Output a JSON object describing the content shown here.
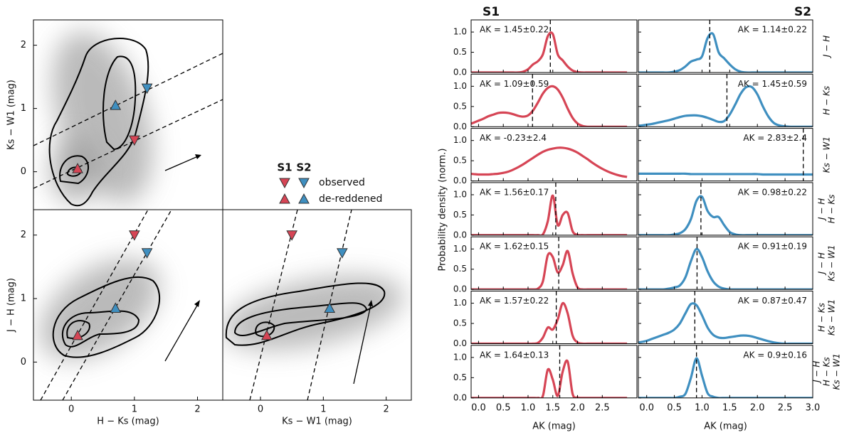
{
  "chart_data": [
    {
      "type": "scatter",
      "ylabel": "Ks − W1 (mag)",
      "xlim": [
        -0.6,
        2.4
      ],
      "ylim": [
        -0.6,
        2.4
      ],
      "yticks": [
        0,
        1,
        2
      ],
      "legend_entries": [
        "observed",
        "de-reddened"
      ],
      "series": [
        {
          "name": "S1",
          "color": "#d64555",
          "x": [
            1.0,
            0.1
          ],
          "y": [
            0.5,
            0.05
          ]
        },
        {
          "name": "S2",
          "color": "#3f8fc0",
          "x": [
            1.2,
            0.7
          ],
          "y": [
            1.32,
            1.05
          ]
        }
      ]
    },
    {
      "type": "scatter",
      "xlabel": "H − Ks (mag)",
      "ylabel": "J − H (mag)",
      "xlim": [
        -0.6,
        2.4
      ],
      "ylim": [
        -0.6,
        2.4
      ],
      "xticks": [
        0,
        1,
        2
      ],
      "yticks": [
        0,
        1,
        2
      ],
      "series": [
        {
          "color": "#d64555",
          "x": [
            1.0,
            0.1
          ],
          "y": [
            2.0,
            0.42
          ]
        },
        {
          "color": "#3f8fc0",
          "x": [
            1.2,
            0.7
          ],
          "y": [
            1.72,
            0.85
          ]
        }
      ]
    },
    {
      "type": "scatter",
      "xlabel": "Ks − W1 (mag)",
      "xlim": [
        -0.6,
        2.4
      ],
      "ylim": [
        -0.6,
        2.4
      ],
      "xticks": [
        0,
        1,
        2
      ],
      "series": [
        {
          "color": "#d64555",
          "x": [
            0.5,
            0.1
          ],
          "y": [
            2.0,
            0.42
          ]
        },
        {
          "color": "#3f8fc0",
          "x": [
            1.3,
            1.1
          ],
          "y": [
            1.72,
            0.85
          ]
        }
      ]
    },
    {
      "type": "line",
      "ylabel": "Probability density (norm.)",
      "xlabel": "AK (mag)",
      "ylim": [
        0,
        1.3
      ],
      "yticks": [
        {
          "value": 0,
          "label": "0.0"
        },
        {
          "value": 0.5,
          "label": "0.5"
        },
        {
          "value": 1,
          "label": "1.0"
        }
      ],
      "rows": [
        [
          "J − H"
        ],
        [
          "H − Ks"
        ],
        [
          "Ks − W1"
        ],
        [
          "J − H",
          "H − Ks"
        ],
        [
          "J − H",
          "Ks − W1"
        ],
        [
          "H − Ks",
          "Ks − W1"
        ],
        [
          "J − H",
          "H − Ks",
          "Ks − W1"
        ]
      ],
      "x": [
        -0.2,
        -0.1,
        0.0,
        0.1,
        0.2,
        0.3,
        0.4,
        0.5,
        0.6,
        0.7,
        0.8,
        0.9,
        1.0,
        1.1,
        1.2,
        1.3,
        1.4,
        1.5,
        1.6,
        1.7,
        1.8,
        1.9,
        2.0,
        2.1,
        2.2,
        2.3,
        2.4,
        2.5,
        2.6,
        2.7,
        2.8,
        2.9,
        3.0
      ],
      "series": [
        {
          "name": "S1",
          "color": "#d64555",
          "xlim": [
            -0.15,
            3.2
          ],
          "xticks": [
            {
              "value": 0,
              "label": "0.0"
            },
            {
              "value": 0.5,
              "label": "0.5"
            },
            {
              "value": 1,
              "label": "1.0"
            },
            {
              "value": 1.5,
              "label": "1.5"
            },
            {
              "value": 2,
              "label": "2.0"
            },
            {
              "value": 2.5,
              "label": "2.5"
            }
          ],
          "ak": [
            1.45,
            1.09,
            -0.23,
            1.56,
            1.62,
            1.57,
            1.64
          ],
          "ak_labels": [
            "AK = 1.45±0.22",
            "AK = 1.09±0.59",
            "AK = -0.23±2.4",
            "AK = 1.56±0.17",
            "AK = 1.62±0.15",
            "AK = 1.57±0.22",
            "AK = 1.64±0.13"
          ],
          "values": [
            [
              0,
              0,
              0,
              0,
              0,
              0,
              0,
              0,
              0,
              0,
              0,
              0.02,
              0.08,
              0.2,
              0.28,
              0.45,
              0.9,
              0.95,
              0.45,
              0.3,
              0.15,
              0.05,
              0.01,
              0,
              0,
              0,
              0,
              0,
              0,
              0,
              0,
              0,
              0
            ],
            [
              0.05,
              0.1,
              0.15,
              0.2,
              0.26,
              0.3,
              0.34,
              0.35,
              0.34,
              0.31,
              0.27,
              0.25,
              0.28,
              0.4,
              0.6,
              0.82,
              0.96,
              1.0,
              0.92,
              0.72,
              0.45,
              0.22,
              0.08,
              0.02,
              0,
              0,
              0,
              0,
              0,
              0,
              0,
              0,
              0
            ],
            [
              0.18,
              0.17,
              0.16,
              0.16,
              0.16,
              0.17,
              0.18,
              0.2,
              0.23,
              0.28,
              0.34,
              0.41,
              0.49,
              0.57,
              0.65,
              0.72,
              0.77,
              0.8,
              0.82,
              0.82,
              0.8,
              0.76,
              0.7,
              0.62,
              0.54,
              0.45,
              0.37,
              0.3,
              0.24,
              0.19,
              0.15,
              0.12,
              0.1
            ],
            [
              0,
              0,
              0,
              0,
              0,
              0,
              0,
              0,
              0,
              0,
              0,
              0,
              0,
              0,
              0,
              0.02,
              0.35,
              0.98,
              0.25,
              0.5,
              0.55,
              0.1,
              0.01,
              0,
              0,
              0,
              0,
              0,
              0,
              0,
              0,
              0,
              0
            ],
            [
              0,
              0,
              0,
              0,
              0,
              0,
              0,
              0,
              0,
              0,
              0,
              0,
              0,
              0,
              0.02,
              0.2,
              0.85,
              0.8,
              0.42,
              0.6,
              0.95,
              0.4,
              0.05,
              0,
              0,
              0,
              0,
              0,
              0,
              0,
              0,
              0,
              0
            ],
            [
              0,
              0,
              0,
              0,
              0,
              0,
              0,
              0,
              0,
              0,
              0,
              0,
              0,
              0,
              0.02,
              0.15,
              0.4,
              0.35,
              0.6,
              1.0,
              0.75,
              0.2,
              0.03,
              0,
              0,
              0,
              0,
              0,
              0,
              0,
              0,
              0,
              0
            ],
            [
              0,
              0,
              0,
              0,
              0,
              0,
              0,
              0,
              0,
              0,
              0,
              0,
              0,
              0,
              0,
              0.05,
              0.7,
              0.45,
              0.05,
              0.65,
              0.9,
              0.1,
              0.01,
              0,
              0,
              0,
              0,
              0,
              0,
              0,
              0,
              0,
              0
            ]
          ]
        },
        {
          "name": "S2",
          "color": "#3f8fc0",
          "xlim": [
            -0.15,
            3.0
          ],
          "xticks": [
            {
              "value": 0,
              "label": "0.0"
            },
            {
              "value": 0.5,
              "label": "0.5"
            },
            {
              "value": 1,
              "label": "1.0"
            },
            {
              "value": 1.5,
              "label": "1.5"
            },
            {
              "value": 2,
              "label": "2.0"
            },
            {
              "value": 2.5,
              "label": "2.5"
            },
            {
              "value": 3,
              "label": "3.0"
            }
          ],
          "ak": [
            1.14,
            1.45,
            2.83,
            0.98,
            0.91,
            0.87,
            0.9
          ],
          "ak_labels": [
            "AK = 1.14±0.22",
            "AK = 1.45±0.59",
            "AK = 2.83±2.4",
            "AK = 0.98±0.22",
            "AK = 0.91±0.19",
            "AK = 0.87±0.47",
            "AK = 0.9±0.16"
          ],
          "values": [
            [
              0,
              0,
              0,
              0,
              0,
              0,
              0,
              0.02,
              0.06,
              0.15,
              0.27,
              0.32,
              0.4,
              0.85,
              0.95,
              0.5,
              0.35,
              0.2,
              0.08,
              0.02,
              0,
              0,
              0,
              0,
              0,
              0,
              0,
              0,
              0,
              0,
              0,
              0,
              0
            ],
            [
              0.02,
              0.03,
              0.05,
              0.07,
              0.1,
              0.13,
              0.16,
              0.2,
              0.24,
              0.27,
              0.28,
              0.28,
              0.26,
              0.22,
              0.17,
              0.12,
              0.14,
              0.3,
              0.55,
              0.82,
              0.98,
              0.98,
              0.8,
              0.5,
              0.25,
              0.09,
              0.03,
              0.01,
              0,
              0,
              0,
              0,
              0
            ],
            [
              0.18,
              0.18,
              0.18,
              0.18,
              0.18,
              0.18,
              0.18,
              0.18,
              0.18,
              0.18,
              0.17,
              0.17,
              0.17,
              0.17,
              0.17,
              0.17,
              0.17,
              0.17,
              0.17,
              0.17,
              0.17,
              0.17,
              0.17,
              0.16,
              0.16,
              0.16,
              0.16,
              0.16,
              0.16,
              0.16,
              0.16,
              0.16,
              0.16
            ],
            [
              0,
              0,
              0,
              0,
              0,
              0,
              0,
              0.02,
              0.05,
              0.15,
              0.4,
              0.85,
              0.95,
              0.6,
              0.45,
              0.45,
              0.25,
              0.08,
              0.02,
              0,
              0,
              0,
              0,
              0,
              0,
              0,
              0,
              0,
              0,
              0,
              0,
              0,
              0
            ],
            [
              0,
              0,
              0,
              0,
              0,
              0,
              0.02,
              0.05,
              0.1,
              0.3,
              0.7,
              1.0,
              0.8,
              0.45,
              0.2,
              0.07,
              0.02,
              0,
              0,
              0,
              0,
              0,
              0,
              0,
              0,
              0,
              0,
              0,
              0,
              0,
              0,
              0,
              0
            ],
            [
              0.02,
              0.04,
              0.07,
              0.12,
              0.17,
              0.22,
              0.27,
              0.35,
              0.5,
              0.75,
              0.98,
              0.95,
              0.7,
              0.4,
              0.22,
              0.15,
              0.14,
              0.16,
              0.18,
              0.2,
              0.2,
              0.18,
              0.14,
              0.1,
              0.06,
              0.03,
              0.01,
              0,
              0,
              0,
              0,
              0,
              0
            ],
            [
              0,
              0,
              0,
              0,
              0,
              0,
              0,
              0,
              0.03,
              0.1,
              0.5,
              0.98,
              0.55,
              0.12,
              0.03,
              0,
              0,
              0,
              0,
              0,
              0,
              0,
              0,
              0,
              0,
              0,
              0,
              0,
              0,
              0,
              0,
              0,
              0
            ]
          ]
        }
      ]
    }
  ]
}
